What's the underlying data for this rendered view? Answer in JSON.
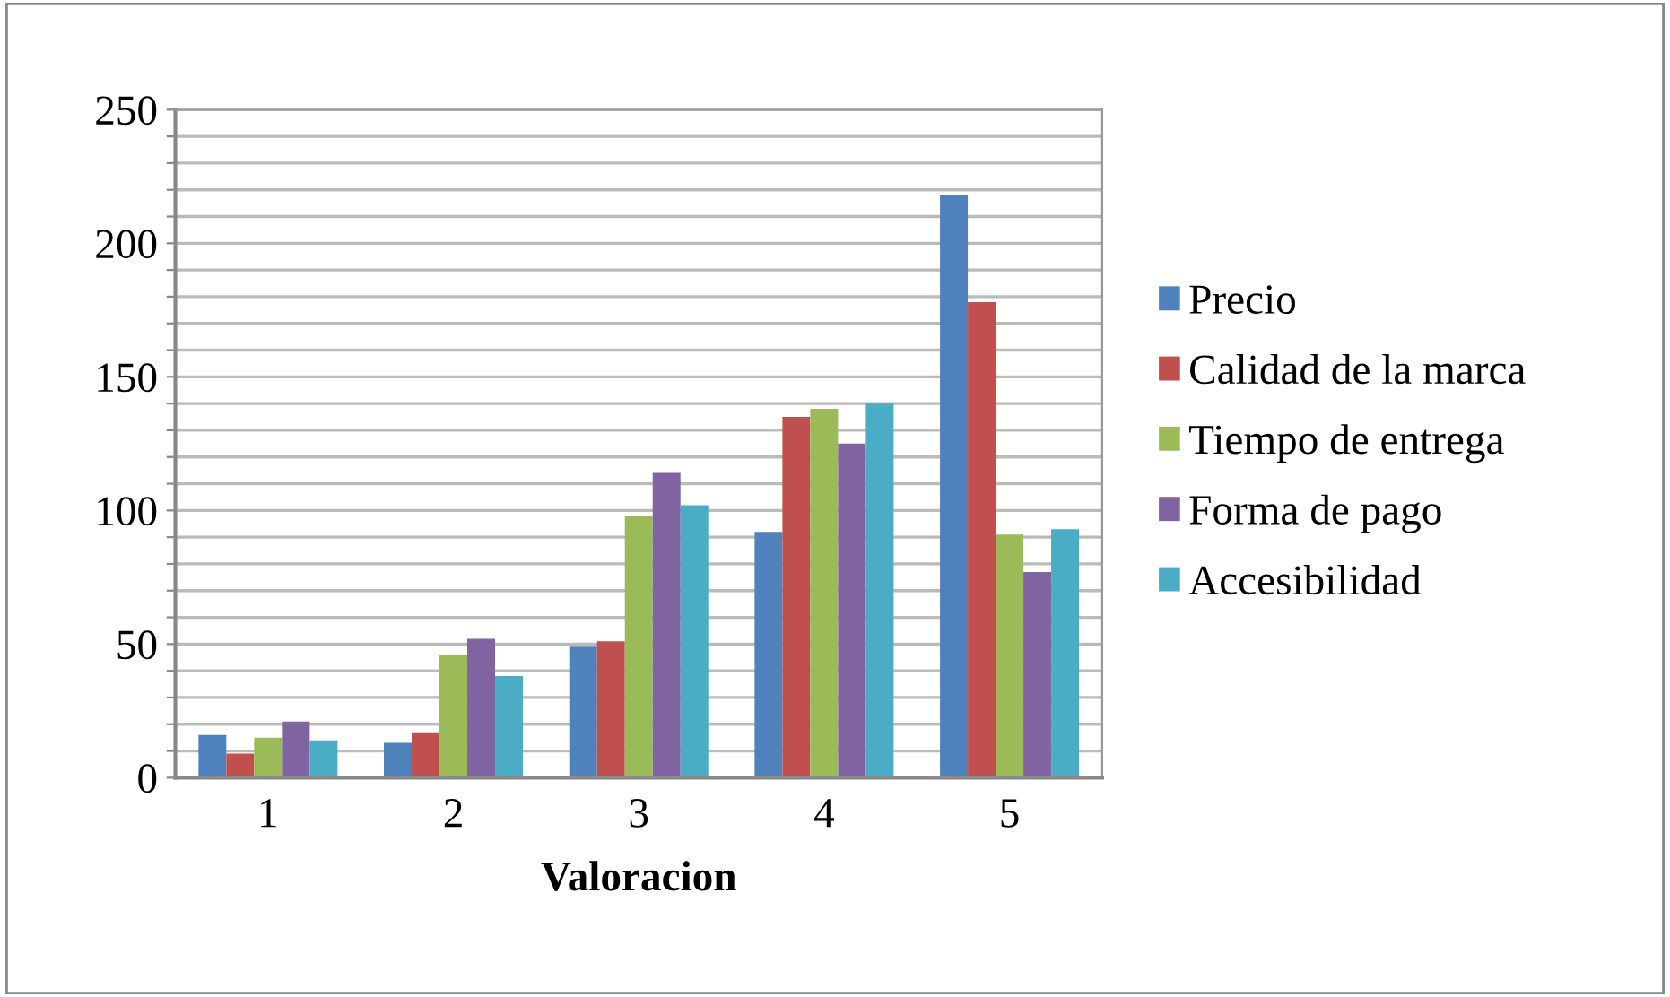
{
  "chart_data": {
    "type": "bar",
    "xlabel": "Valoracion",
    "categories": [
      "1",
      "2",
      "3",
      "4",
      "5"
    ],
    "series": [
      {
        "name": "Precio",
        "color": "#4f81bd",
        "values": [
          16,
          13,
          49,
          92,
          218
        ]
      },
      {
        "name": "Calidad de la marca",
        "color": "#c0504d",
        "values": [
          9,
          17,
          51,
          135,
          178
        ]
      },
      {
        "name": "Tiempo de entrega",
        "color": "#9bbb59",
        "values": [
          15,
          46,
          98,
          138,
          91
        ]
      },
      {
        "name": "Forma de pago",
        "color": "#8064a2",
        "values": [
          21,
          52,
          114,
          125,
          77
        ]
      },
      {
        "name": "Accesibilidad",
        "color": "#4bacc6",
        "values": [
          14,
          38,
          102,
          140,
          93
        ]
      }
    ],
    "ylim": [
      0,
      250
    ],
    "yticks": [
      0,
      {
        "value": 10,
        "label": null
      },
      {
        "value": 20,
        "label": null
      },
      {
        "value": 30,
        "label": null
      },
      {
        "value": 40,
        "label": null
      },
      50,
      {
        "value": 60,
        "label": null
      },
      {
        "value": 70,
        "label": null
      },
      {
        "value": 80,
        "label": null
      },
      {
        "value": 90,
        "label": null
      },
      100,
      {
        "value": 110,
        "label": null
      },
      {
        "value": 120,
        "label": null
      },
      {
        "value": 130,
        "label": null
      },
      {
        "value": 140,
        "label": null
      },
      150,
      {
        "value": 160,
        "label": null
      },
      {
        "value": 170,
        "label": null
      },
      {
        "value": 180,
        "label": null
      },
      {
        "value": 190,
        "label": null
      },
      200,
      {
        "value": 210,
        "label": null
      },
      {
        "value": 220,
        "label": null
      },
      {
        "value": 230,
        "label": null
      },
      {
        "value": 240,
        "label": null
      },
      250
    ],
    "grid": "y",
    "legend": "right"
  }
}
